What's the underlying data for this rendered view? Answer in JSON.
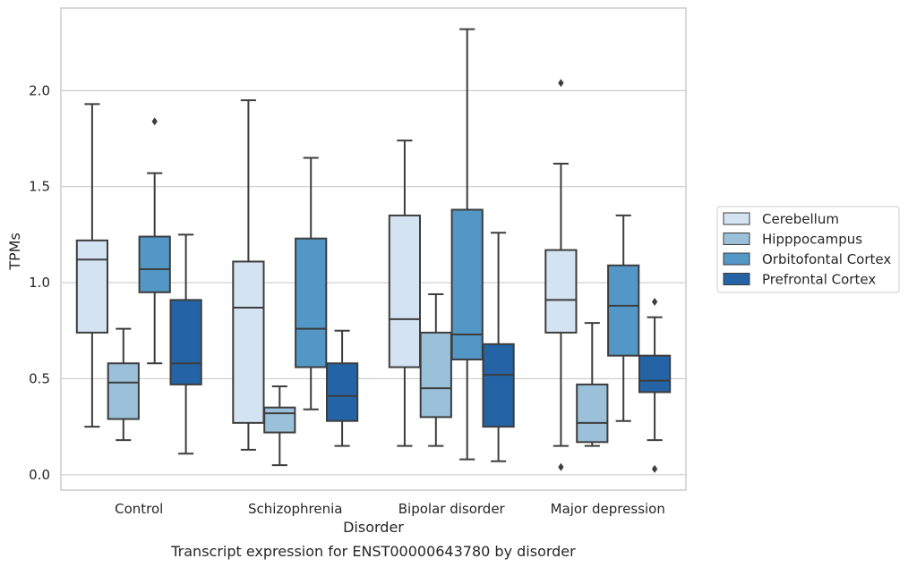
{
  "chart_data": {
    "type": "box",
    "xlabel": "Disorder",
    "ylabel": "TPMs",
    "caption": "Transcript expression for ENST00000643780 by disorder",
    "ylim": [
      -0.08,
      2.43
    ],
    "yticks": [
      0.0,
      0.5,
      1.0,
      1.5,
      2.0
    ],
    "ytick_labels": [
      "0.0",
      "0.5",
      "1.0",
      "1.5",
      "2.0"
    ],
    "grid": "horizontal",
    "legend_position": "right",
    "categories": [
      "Control",
      "Schizophrenia",
      "Bipolar disorder",
      "Major depression"
    ],
    "series": [
      {
        "name": "Cerebellum",
        "color": "#d4e3f2",
        "boxes": [
          {
            "whisker_low": 0.25,
            "q1": 0.74,
            "median": 1.12,
            "q3": 1.22,
            "whisker_high": 1.93,
            "outliers": []
          },
          {
            "whisker_low": 0.13,
            "q1": 0.27,
            "median": 0.87,
            "q3": 1.11,
            "whisker_high": 1.95,
            "outliers": []
          },
          {
            "whisker_low": 0.15,
            "q1": 0.56,
            "median": 0.81,
            "q3": 1.35,
            "whisker_high": 1.74,
            "outliers": []
          },
          {
            "whisker_low": 0.15,
            "q1": 0.74,
            "median": 0.91,
            "q3": 1.17,
            "whisker_high": 1.62,
            "outliers": [
              2.04,
              0.04
            ]
          }
        ]
      },
      {
        "name": "Hipppocampus",
        "color": "#9ac0da",
        "boxes": [
          {
            "whisker_low": 0.18,
            "q1": 0.29,
            "median": 0.48,
            "q3": 0.58,
            "whisker_high": 0.76,
            "outliers": []
          },
          {
            "whisker_low": 0.05,
            "q1": 0.22,
            "median": 0.32,
            "q3": 0.35,
            "whisker_high": 0.46,
            "outliers": []
          },
          {
            "whisker_low": 0.15,
            "q1": 0.3,
            "median": 0.45,
            "q3": 0.74,
            "whisker_high": 0.94,
            "outliers": []
          },
          {
            "whisker_low": 0.15,
            "q1": 0.17,
            "median": 0.27,
            "q3": 0.47,
            "whisker_high": 0.79,
            "outliers": []
          }
        ]
      },
      {
        "name": "Orbitofontal Cortex",
        "color": "#5297c5",
        "boxes": [
          {
            "whisker_low": 0.58,
            "q1": 0.95,
            "median": 1.07,
            "q3": 1.24,
            "whisker_high": 1.57,
            "outliers": [
              1.84
            ]
          },
          {
            "whisker_low": 0.34,
            "q1": 0.56,
            "median": 0.76,
            "q3": 1.23,
            "whisker_high": 1.65,
            "outliers": []
          },
          {
            "whisker_low": 0.08,
            "q1": 0.6,
            "median": 0.73,
            "q3": 1.38,
            "whisker_high": 2.32,
            "outliers": []
          },
          {
            "whisker_low": 0.28,
            "q1": 0.62,
            "median": 0.88,
            "q3": 1.09,
            "whisker_high": 1.35,
            "outliers": []
          }
        ]
      },
      {
        "name": "Prefrontal Cortex",
        "color": "#2464a6",
        "boxes": [
          {
            "whisker_low": 0.11,
            "q1": 0.47,
            "median": 0.58,
            "q3": 0.91,
            "whisker_high": 1.25,
            "outliers": []
          },
          {
            "whisker_low": 0.15,
            "q1": 0.28,
            "median": 0.41,
            "q3": 0.58,
            "whisker_high": 0.75,
            "outliers": []
          },
          {
            "whisker_low": 0.07,
            "q1": 0.25,
            "median": 0.52,
            "q3": 0.68,
            "whisker_high": 1.26,
            "outliers": []
          },
          {
            "whisker_low": 0.18,
            "q1": 0.43,
            "median": 0.49,
            "q3": 0.62,
            "whisker_high": 0.82,
            "outliers": [
              0.9,
              0.03
            ]
          }
        ]
      }
    ]
  }
}
